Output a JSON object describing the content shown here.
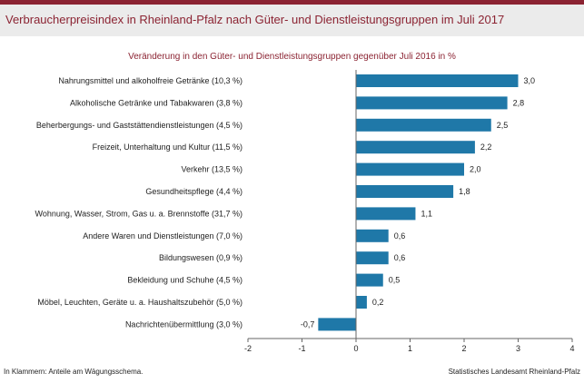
{
  "header": {
    "title": "Verbraucherpreisindex in Rheinland-Pfalz nach Güter- und Dienstleistungsgruppen im Juli 2017"
  },
  "colors": {
    "accent": "#8b2332",
    "bar": "#1f78a8",
    "header_bg": "#ebebeb"
  },
  "chart_data": {
    "type": "bar",
    "orientation": "horizontal",
    "title": "Verbraucherpreisindex in Rheinland-Pfalz nach Güter- und Dienstleistungsgruppen im Juli 2017",
    "subtitle": "Veränderung in den Güter- und Dienstleistungsgruppen gegenüber Juli 2016 in %",
    "categories": [
      "Nahrungsmittel und alkoholfreie Getränke (10,3 %)",
      "Alkoholische Getränke und Tabakwaren (3,8 %)",
      "Beherbergungs- und Gaststättendienstleistungen (4,5 %)",
      "Freizeit, Unterhaltung und Kultur (11,5 %)",
      "Verkehr (13,5 %)",
      "Gesundheitspflege (4,4 %)",
      "Wohnung, Wasser, Strom, Gas u. a. Brennstoffe (31,7 %)",
      "Andere Waren und Dienstleistungen (7,0 %)",
      "Bildungswesen (0,9 %)",
      "Bekleidung und Schuhe (4,5 %)",
      "Möbel, Leuchten, Geräte u. a. Haushaltszubehör  (5,0 %)",
      "Nachrichtenübermittlung (3,0 %)"
    ],
    "values": [
      3.0,
      2.8,
      2.5,
      2.2,
      2.0,
      1.8,
      1.1,
      0.6,
      0.6,
      0.5,
      0.2,
      -0.7
    ],
    "value_labels": [
      "3,0",
      "2,8",
      "2,5",
      "2,2",
      "2,0",
      "1,8",
      "1,1",
      "0,6",
      "0,6",
      "0,5",
      "0,2",
      "-0,7"
    ],
    "xlim": [
      -2,
      4
    ],
    "xticks": [
      -2,
      -1,
      0,
      1,
      2,
      3,
      4
    ],
    "xtick_labels": [
      "-2",
      "-1",
      "0",
      "1",
      "2",
      "3",
      "4"
    ],
    "grid": false,
    "footnote": "In Klammern: Anteile am Wägungsschema.",
    "source": "Statistisches Landesamt Rheinland-Pfalz"
  }
}
